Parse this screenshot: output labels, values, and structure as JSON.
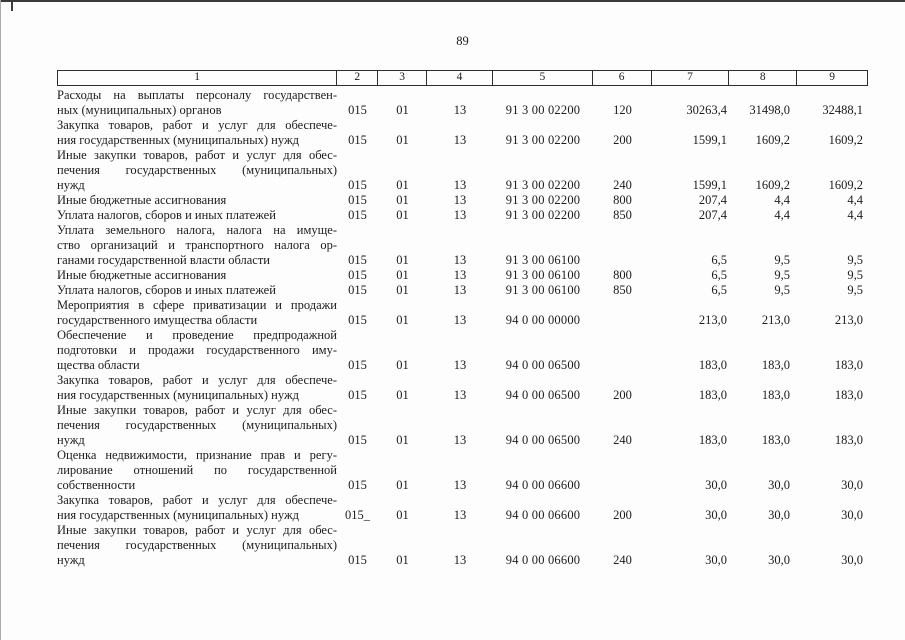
{
  "page": {
    "number": "89"
  },
  "colors": {
    "text": "#1c1c1c",
    "table_border": "#2e2e2e",
    "page_background": "#fdfdfd",
    "scan_edge_gray": "#a9a9a9",
    "scan_top_black": "#3a3a3a"
  },
  "table": {
    "headers": [
      "1",
      "2",
      "3",
      "4",
      "5",
      "6",
      "7",
      "8",
      "9"
    ],
    "rows": [
      {
        "name_lines": [
          "Расходы на выплаты персоналу государствен-",
          "ных (муниципальных) органов"
        ],
        "cols": [
          "015",
          "01",
          "13",
          "91 3 00 02200",
          "120",
          "30263,4",
          "31498,0",
          "32488,1"
        ]
      },
      {
        "name_lines": [
          "Закупка товаров, работ и услуг для обеспече-",
          "ния государственных (муниципальных) нужд"
        ],
        "cols": [
          "015",
          "01",
          "13",
          "91 3 00 02200",
          "200",
          "1599,1",
          "1609,2",
          "1609,2"
        ]
      },
      {
        "name_lines": [
          "Иные закупки товаров, работ и услуг для обес-",
          "печения государственных (муниципальных)",
          "нужд"
        ],
        "cols": [
          "015",
          "01",
          "13",
          "91 3 00 02200",
          "240",
          "1599,1",
          "1609,2",
          "1609,2"
        ]
      },
      {
        "name_lines": [
          "Иные бюджетные ассигнования"
        ],
        "cols": [
          "015",
          "01",
          "13",
          "91 3 00 02200",
          "800",
          "207,4",
          "4,4",
          "4,4"
        ]
      },
      {
        "name_lines": [
          "Уплата налогов, сборов и иных платежей"
        ],
        "cols": [
          "015",
          "01",
          "13",
          "91 3 00 02200",
          "850",
          "207,4",
          "4,4",
          "4,4"
        ]
      },
      {
        "name_lines": [
          "Уплата земельного налога, налога на имуще-",
          "ство организаций и транспортного налога ор-",
          "ганами государственной власти области"
        ],
        "cols": [
          "015",
          "01",
          "13",
          "91 3 00 06100",
          "",
          "6,5",
          "9,5",
          "9,5"
        ]
      },
      {
        "name_lines": [
          "Иные бюджетные ассигнования"
        ],
        "cols": [
          "015",
          "01",
          "13",
          "91 3 00 06100",
          "800",
          "6,5",
          "9,5",
          "9,5"
        ]
      },
      {
        "name_lines": [
          "Уплата налогов, сборов и иных платежей"
        ],
        "cols": [
          "015",
          "01",
          "13",
          "91 3 00 06100",
          "850",
          "6,5",
          "9,5",
          "9,5"
        ]
      },
      {
        "name_lines": [
          "Мероприятия в сфере приватизации и продажи",
          "государственного имущества области"
        ],
        "cols": [
          "015",
          "01",
          "13",
          "94 0 00 00000",
          "",
          "213,0",
          "213,0",
          "213,0"
        ]
      },
      {
        "name_lines": [
          "Обеспечение и проведение предпродажной",
          "подготовки и продажи государственного иму-",
          "щества области"
        ],
        "cols": [
          "015",
          "01",
          "13",
          "94 0 00 06500",
          "",
          "183,0",
          "183,0",
          "183,0"
        ]
      },
      {
        "name_lines": [
          "Закупка товаров, работ и услуг для обеспече-",
          "ния государственных (муниципальных) нужд"
        ],
        "cols": [
          "015",
          "01",
          "13",
          "94 0 00 06500",
          "200",
          "183,0",
          "183,0",
          "183,0"
        ]
      },
      {
        "name_lines": [
          "Иные закупки товаров, работ и услуг для обес-",
          "печения государственных (муниципальных)",
          "нужд"
        ],
        "cols": [
          "015",
          "01",
          "13",
          "94 0 00 06500",
          "240",
          "183,0",
          "183,0",
          "183,0"
        ]
      },
      {
        "name_lines": [
          "Оценка недвижимости, признание прав и регу-",
          "лирование отношений по государственной",
          "собственности"
        ],
        "cols": [
          "015",
          "01",
          "13",
          "94 0 00 06600",
          "",
          "30,0",
          "30,0",
          "30,0"
        ]
      },
      {
        "name_lines": [
          "Закупка товаров, работ и услуг для обеспече-",
          "ния государственных (муниципальных) нужд"
        ],
        "cols": [
          "015_",
          "01",
          "13",
          "94 0 00 06600",
          "200",
          "30,0",
          "30,0",
          "30,0"
        ]
      },
      {
        "name_lines": [
          "Иные закупки товаров, работ и услуг для обес-",
          "печения государственных (муниципальных)",
          "нужд"
        ],
        "cols": [
          "015",
          "01",
          "13",
          "94 0 00 06600",
          "240",
          "30,0",
          "30,0",
          "30,0"
        ]
      }
    ]
  }
}
